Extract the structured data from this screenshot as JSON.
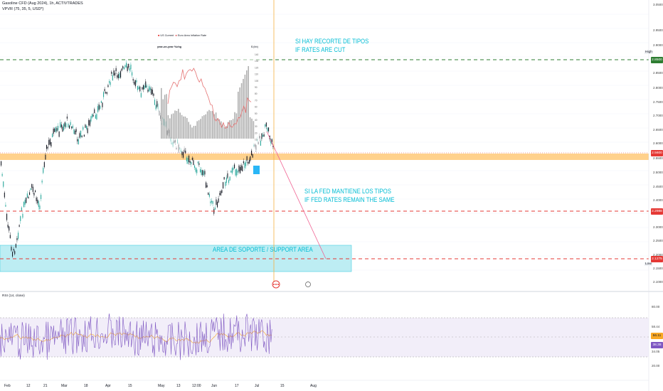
{
  "header": {
    "symbol_line": "Gasoline CFD (Aug 2024), 1h, ACTIVTRADES",
    "indicator_line": "VPVR (75, 35, 5, USD*)"
  },
  "annotations": {
    "cut_es": "SI HAY RECORTE DE TIPOS",
    "cut_en": "IF RATES ARE CUT",
    "same_es": "SI LA FED MANTIENE LOS TIPOS",
    "same_en": "IF FED RATES REMAIN THE SAME",
    "support": "AREA DE SOPORTE / SUPPORT  AREA"
  },
  "inset": {
    "legend_a": "US Current",
    "legend_b": "Euro Area Inflation Rate",
    "left_title": "year-on-year %chg",
    "right_title": "$ (bb)"
  },
  "price_scale": {
    "ticks": [
      "3.0500",
      "2.9500",
      "2.9000",
      "2.8500",
      "2.8000",
      "2.7500",
      "2.7000",
      "2.6500",
      "2.6000",
      "2.5500",
      "2.5000",
      "2.4500",
      "2.4000",
      "2.3500",
      "2.3000",
      "2.2500",
      "2.2000",
      "2.1500",
      "2.1000",
      "2.0500"
    ],
    "high_label": "High",
    "low_label": "Low",
    "tag_high": "2.8500",
    "tag_current": "2.5600",
    "tag_mid": "2.2988",
    "tag_low": "2.1275"
  },
  "rsi": {
    "title": "RSI (14, close)",
    "ticks": [
      "80.00",
      "50.00",
      "20.00"
    ],
    "tag_a": "58.44",
    "tag_b": "56.11",
    "tag_c": "38.38",
    "tag_d": "34.05"
  },
  "time_axis": [
    "Feb",
    "12",
    "21",
    "Mar",
    "18",
    "Apr",
    "15",
    "May",
    "13",
    "12:00",
    "Jun",
    "17",
    "Jul",
    "15",
    "Aug"
  ],
  "colors": {
    "up": "#26a69a",
    "down": "#131722",
    "green_line": "#2e7d32",
    "red_line": "#e53935",
    "orange_band": "#ffcc80",
    "support_fill": "#b2ebf2",
    "rsi_line": "#7e57c2",
    "rsi_band": "#ede7f6"
  }
}
